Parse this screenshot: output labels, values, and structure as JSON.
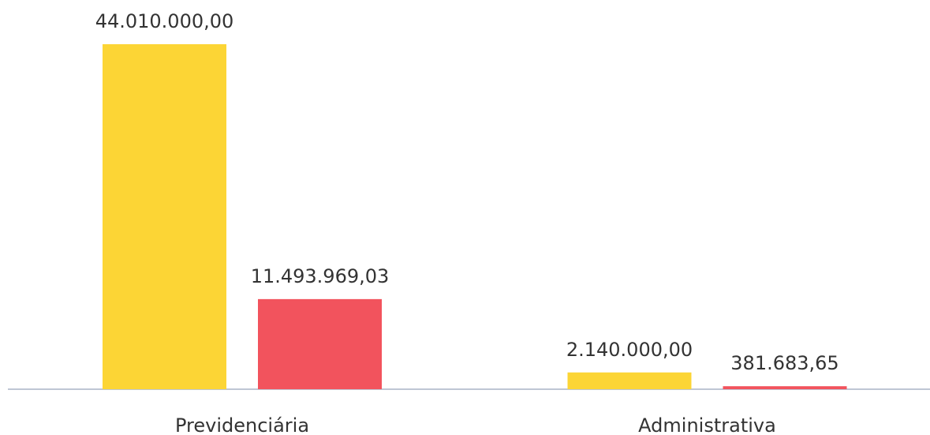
{
  "chart_data": {
    "type": "bar",
    "categories": [
      "Previdenciária",
      "Administrativa"
    ],
    "series": [
      {
        "color": "#fcd535",
        "values": [
          44010000,
          2140000
        ],
        "value_labels": [
          "44.010.000,00",
          "2.140.000,00"
        ]
      },
      {
        "color": "#f2535d",
        "values": [
          11493969.03,
          381683.65
        ],
        "value_labels": [
          "11.493.969,03",
          "381.683,65"
        ]
      }
    ]
  }
}
